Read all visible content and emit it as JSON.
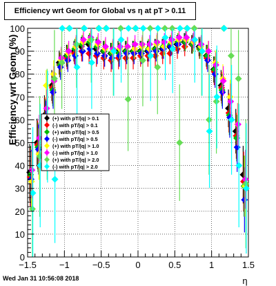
{
  "chart_data": {
    "type": "scatter",
    "title": "Efficiency wrt Geom for Global vs    η at pT > 0.11",
    "xlabel": "η",
    "ylabel": "Efficiency wrt Geom (%)",
    "xlim": [
      -1.5,
      1.5
    ],
    "ylim": [
      0,
      100
    ],
    "x_ticks": [
      "−1.5",
      "−1",
      "−0.5",
      "0",
      "0.5",
      "1",
      "1.5"
    ],
    "y_ticks": [
      "0",
      "10",
      "20",
      "30",
      "40",
      "50",
      "60",
      "70",
      "80",
      "90",
      "100"
    ],
    "grid": true,
    "legend_position": "middle-left",
    "series": [
      {
        "name": "(+) with pT/|q| > 0.1",
        "color": "#000000",
        "marker": "diamond",
        "x": [
          -1.45,
          -1.35,
          -1.25,
          -1.15,
          -1.05,
          -0.95,
          -0.85,
          -0.75,
          -0.65,
          -0.55,
          -0.45,
          -0.35,
          -0.25,
          -0.15,
          -0.05,
          0.05,
          0.15,
          0.25,
          0.35,
          0.45,
          0.55,
          0.65,
          0.75,
          0.85,
          0.95,
          1.05,
          1.15,
          1.25,
          1.35,
          1.45
        ],
        "y": [
          37,
          50,
          62,
          75,
          85,
          88,
          90,
          92,
          93,
          91,
          90,
          89,
          90,
          90,
          90,
          90,
          90,
          91,
          91,
          92,
          93,
          94,
          93,
          92,
          88,
          82,
          75,
          65,
          55,
          36
        ]
      },
      {
        "name": "(-) with pT/|q| > 0.1",
        "color": "#ff0000",
        "marker": "diamond",
        "x": [
          -1.45,
          -1.35,
          -1.25,
          -1.15,
          -1.05,
          -0.95,
          -0.85,
          -0.75,
          -0.65,
          -0.55,
          -0.45,
          -0.35,
          -0.25,
          -0.15,
          -0.05,
          0.05,
          0.15,
          0.25,
          0.35,
          0.45,
          0.55,
          0.65,
          0.75,
          0.85,
          0.95,
          1.05,
          1.15,
          1.25,
          1.35,
          1.45
        ],
        "y": [
          35,
          49,
          61,
          74,
          84,
          87,
          89,
          90,
          89,
          88,
          87,
          86,
          87,
          87,
          87,
          88,
          88,
          88,
          89,
          89,
          91,
          92,
          93,
          91,
          87,
          81,
          74,
          63,
          53,
          33
        ]
      },
      {
        "name": "(+) with pT/|q| > 0.5",
        "color": "#00bb00",
        "marker": "diamond",
        "x": [
          -1.45,
          -1.35,
          -1.25,
          -1.15,
          -1.05,
          -0.95,
          -0.85,
          -0.75,
          -0.65,
          -0.55,
          -0.45,
          -0.35,
          -0.25,
          -0.15,
          -0.05,
          0.05,
          0.15,
          0.25,
          0.35,
          0.45,
          0.55,
          0.65,
          0.75,
          0.85,
          0.95,
          1.05,
          1.15,
          1.25,
          1.35,
          1.45
        ],
        "y": [
          36,
          48,
          60,
          73,
          84,
          88,
          91,
          93,
          94,
          92,
          90,
          89,
          89,
          90,
          90,
          90,
          91,
          91,
          92,
          93,
          94,
          94,
          93,
          91,
          88,
          82,
          73,
          62,
          52,
          31
        ]
      },
      {
        "name": "(-) with pT/|q| > 0.5",
        "color": "#0000ff",
        "marker": "diamond",
        "x": [
          -1.45,
          -1.35,
          -1.25,
          -1.15,
          -1.05,
          -0.95,
          -0.85,
          -0.75,
          -0.65,
          -0.55,
          -0.45,
          -0.35,
          -0.25,
          -0.15,
          -0.05,
          0.05,
          0.15,
          0.25,
          0.35,
          0.45,
          0.55,
          0.65,
          0.75,
          0.85,
          0.95,
          1.05,
          1.15,
          1.25,
          1.35,
          1.45
        ],
        "y": [
          34,
          47,
          60,
          72,
          83,
          86,
          88,
          90,
          91,
          89,
          88,
          87,
          88,
          89,
          89,
          89,
          90,
          90,
          91,
          92,
          93,
          95,
          94,
          92,
          86,
          80,
          72,
          61,
          48,
          25
        ]
      },
      {
        "name": "(+) with pT/|q| > 1.0",
        "color": "#ffff00",
        "marker": "diamond",
        "x": [
          -1.45,
          -1.35,
          -1.25,
          -1.15,
          -1.05,
          -0.95,
          -0.85,
          -0.75,
          -0.65,
          -0.55,
          -0.45,
          -0.35,
          -0.25,
          -0.15,
          -0.05,
          0.05,
          0.15,
          0.25,
          0.35,
          0.45,
          0.55,
          0.65,
          0.75,
          0.85,
          0.95,
          1.05,
          1.15,
          1.25,
          1.35,
          1.45
        ],
        "y": [
          33,
          45,
          75,
          80,
          86,
          89,
          92,
          94,
          95,
          93,
          91,
          90,
          91,
          92,
          91,
          92,
          91,
          93,
          92,
          94,
          95,
          95,
          94,
          92,
          90,
          85,
          78,
          70,
          58,
          31
        ]
      },
      {
        "name": "(-) with pT/|q| > 1.0",
        "color": "#ff00ff",
        "marker": "diamond",
        "x": [
          -1.45,
          -1.35,
          -1.25,
          -1.15,
          -1.05,
          -0.95,
          -0.85,
          -0.75,
          -0.65,
          -0.55,
          -0.45,
          -0.35,
          -0.25,
          -0.15,
          -0.05,
          0.05,
          0.15,
          0.25,
          0.35,
          0.45,
          0.55,
          0.65,
          0.75,
          0.85,
          0.95,
          1.05,
          1.15,
          1.25,
          1.35,
          1.45
        ],
        "y": [
          38,
          52,
          65,
          77,
          87,
          90,
          93,
          95,
          96,
          94,
          92,
          91,
          92,
          92,
          93,
          93,
          93,
          94,
          94,
          95,
          96,
          96,
          95,
          93,
          90,
          84,
          77,
          68,
          58,
          34
        ]
      },
      {
        "name": "(+) with pT/|q| > 2.0",
        "color": "#66dd55",
        "marker": "diamond",
        "x": [
          -1.45,
          -1.35,
          -1.25,
          -1.15,
          -1.05,
          -0.95,
          -0.85,
          -0.75,
          -0.65,
          -0.55,
          -0.45,
          -0.35,
          -0.25,
          -0.15,
          -0.05,
          0.05,
          0.15,
          0.25,
          0.35,
          0.45,
          0.55,
          0.65,
          0.75,
          0.85,
          0.95,
          1.05,
          1.15,
          1.25,
          1.35,
          1.45
        ],
        "y": [
          21,
          44,
          58,
          78,
          85,
          100,
          93,
          100,
          95,
          100,
          100,
          90,
          100,
          69,
          100,
          86,
          100,
          83,
          100,
          100,
          50,
          100,
          100,
          90,
          60,
          68,
          100,
          88,
          78,
          32
        ]
      },
      {
        "name": "(-) with pT/|q| > 2.0",
        "color": "#00ffff",
        "marker": "diamond",
        "x": [
          -1.45,
          -1.35,
          -1.25,
          -1.15,
          -1.05,
          -0.95,
          -0.85,
          -0.75,
          -0.65,
          -0.55,
          -0.45,
          -0.35,
          -0.25,
          -0.15,
          -0.05,
          0.05,
          0.15,
          0.25,
          0.35,
          0.45,
          0.55,
          0.65,
          0.75,
          0.85,
          0.95,
          1.05,
          1.15,
          1.25,
          1.35,
          1.45
        ],
        "y": [
          28,
          40,
          57,
          34,
          100,
          100,
          83,
          100,
          85,
          100,
          100,
          90,
          95,
          100,
          100,
          100,
          88,
          100,
          96,
          91,
          100,
          100,
          95,
          90,
          55,
          70,
          100,
          60,
          40,
          30
        ]
      }
    ]
  },
  "footer": {
    "timestamp": "Wed Jan 31 10:56:08 2018"
  }
}
